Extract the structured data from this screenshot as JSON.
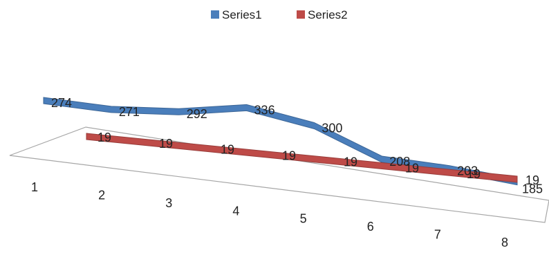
{
  "chart_data": {
    "type": "line",
    "categories": [
      "1",
      "2",
      "3",
      "4",
      "5",
      "6",
      "7",
      "8"
    ],
    "series": [
      {
        "name": "Series1",
        "values": [
          274,
          271,
          292,
          336,
          300,
          208,
          203,
          185
        ],
        "color": "#4A7EBB"
      },
      {
        "name": "Series2",
        "values": [
          19,
          19,
          19,
          19,
          19,
          19,
          19,
          19
        ],
        "color": "#BE4B48"
      }
    ],
    "legend_position": "top",
    "grid": false,
    "title": "",
    "xlabel": "",
    "ylabel": ""
  }
}
